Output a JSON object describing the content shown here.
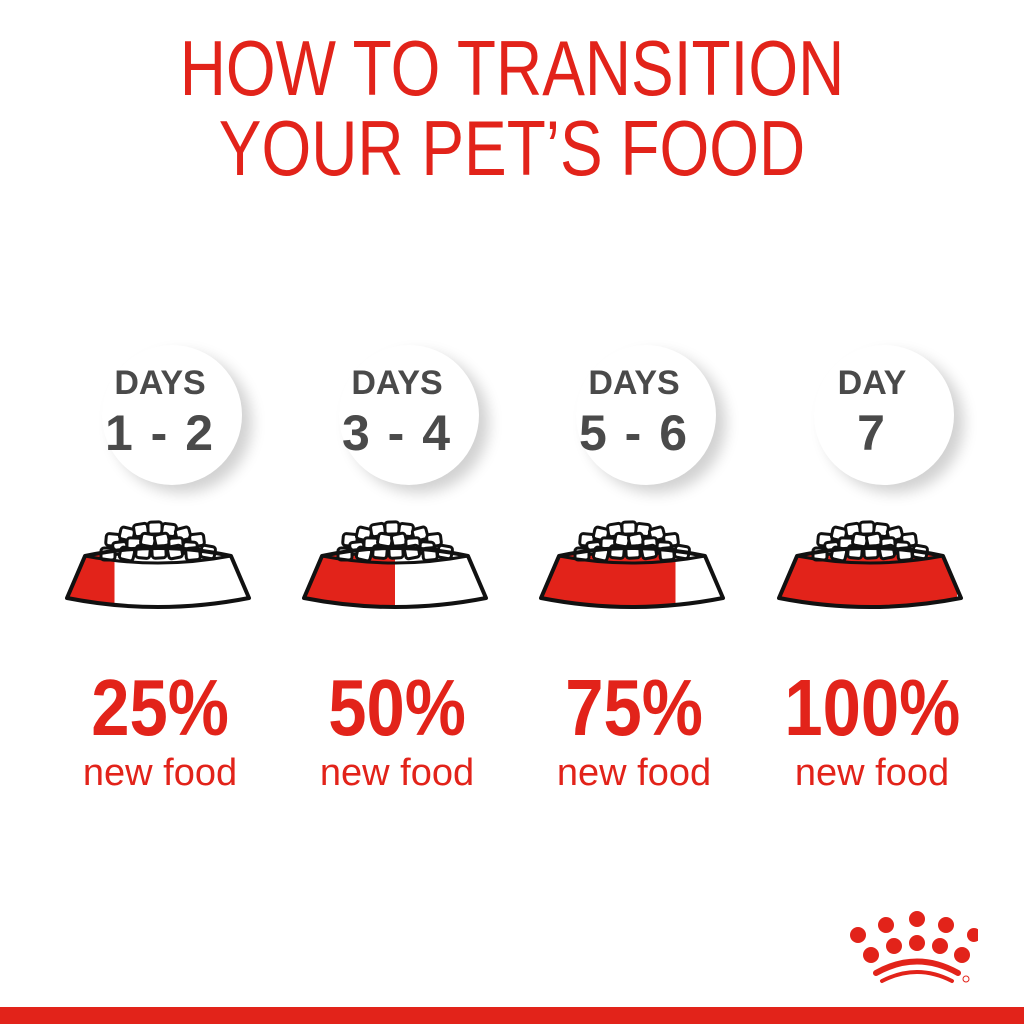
{
  "title": {
    "line1": "HOW TO TRANSITION",
    "line2": "YOUR PET’S FOOD"
  },
  "colors": {
    "brand_red": "#e2231a",
    "gray_text": "#4a4a4a"
  },
  "steps": [
    {
      "days_label": "DAYS",
      "days_range": "1 - 2",
      "percent": "25%",
      "new_food_fraction": 0.25,
      "caption": "new food"
    },
    {
      "days_label": "DAYS",
      "days_range": "3 - 4",
      "percent": "50%",
      "new_food_fraction": 0.5,
      "caption": "new food"
    },
    {
      "days_label": "DAYS",
      "days_range": "5 - 6",
      "percent": "75%",
      "new_food_fraction": 0.75,
      "caption": "new food"
    },
    {
      "days_label": "DAY",
      "days_range": "7",
      "percent": "100%",
      "new_food_fraction": 1.0,
      "caption": "new food"
    }
  ],
  "logo": {
    "icon": "crown-logo-icon",
    "mark": "®"
  }
}
